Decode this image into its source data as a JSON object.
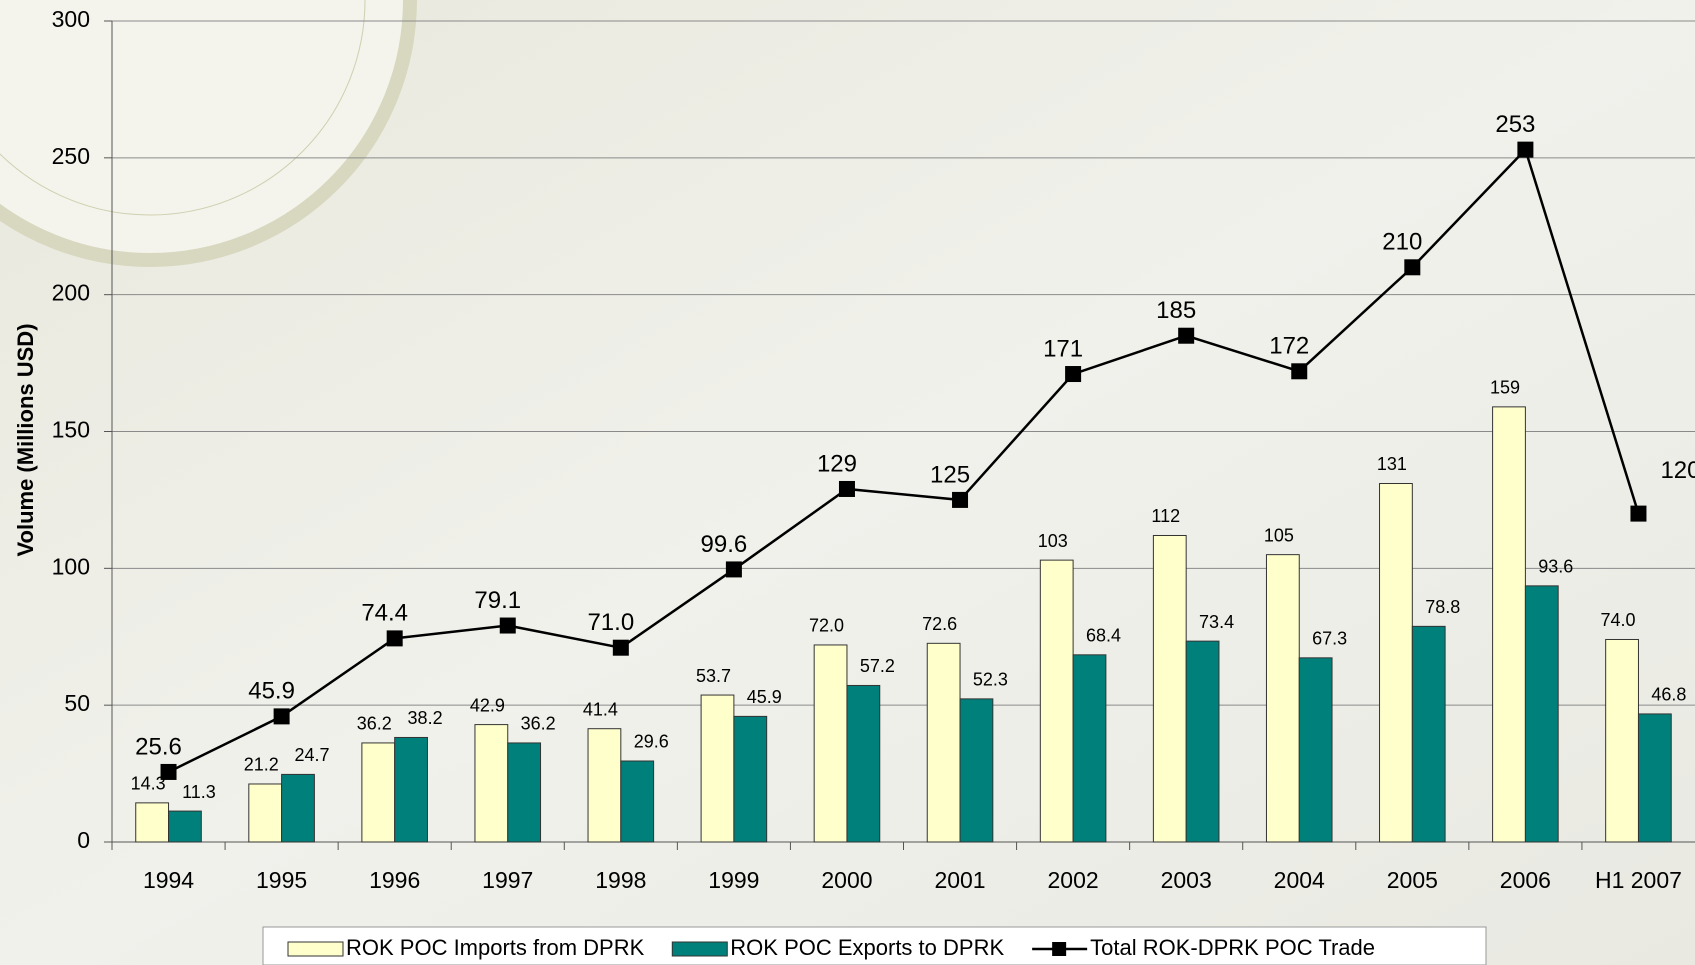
{
  "chart_data": {
    "type": "bar",
    "y_label": "Volume (Millions USD)",
    "categories": [
      "1994",
      "1995",
      "1996",
      "1997",
      "1998",
      "1999",
      "2000",
      "2001",
      "2002",
      "2003",
      "2004",
      "2005",
      "2006",
      "H1 2007"
    ],
    "series": [
      {
        "name": "ROK POC Imports from DPRK",
        "color": "#ffffcc",
        "type": "bar",
        "values": [
          14.3,
          21.2,
          36.2,
          42.9,
          41.4,
          53.7,
          72.0,
          72.6,
          103,
          112,
          105,
          131,
          159,
          74.0
        ],
        "value_labels": [
          "14.3",
          "21.2",
          "36.2",
          "42.9",
          "41.4",
          "53.7",
          "72.0",
          "72.6",
          "103",
          "112",
          "105",
          "131",
          "159",
          "74.0"
        ]
      },
      {
        "name": "ROK POC Exports to DPRK",
        "color": "#00807a",
        "type": "bar",
        "values": [
          11.3,
          24.7,
          38.2,
          36.2,
          29.6,
          45.9,
          57.2,
          52.3,
          68.4,
          73.4,
          67.3,
          78.8,
          93.6,
          46.8
        ],
        "value_labels": [
          "11.3",
          "24.7",
          "38.2",
          "36.2",
          "29.6",
          "45.9",
          "57.2",
          "52.3",
          "68.4",
          "73.4",
          "67.3",
          "78.8",
          "93.6",
          "46.8"
        ]
      },
      {
        "name": "Total ROK-DPRK POC Trade",
        "color": "#000000",
        "type": "line",
        "values": [
          25.6,
          45.9,
          74.4,
          79.1,
          71.0,
          99.6,
          129,
          125,
          171,
          185,
          172,
          210,
          253,
          120
        ],
        "value_labels": [
          "25.6",
          "45.9",
          "74.4",
          "79.1",
          "71.0",
          "99.6",
          "129",
          "125",
          "171",
          "185",
          "172",
          "210",
          "253",
          "120"
        ]
      }
    ],
    "ylim": [
      0,
      300
    ],
    "yticks": [
      0,
      50,
      100,
      150,
      200,
      250,
      300
    ],
    "grid": true,
    "legend": "bottom"
  }
}
